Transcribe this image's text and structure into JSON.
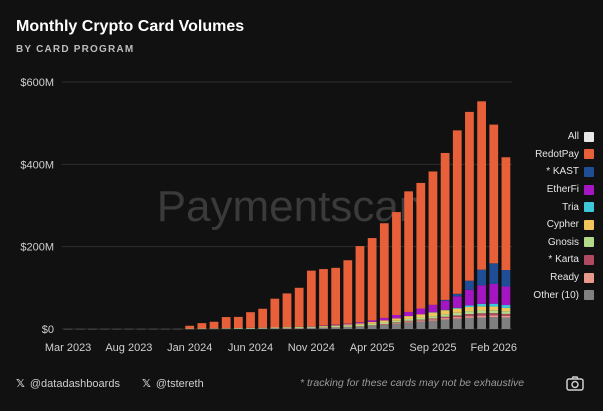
{
  "title": "Monthly Crypto Card Volumes",
  "subtitle": "BY CARD PROGRAM",
  "watermark": "Paymentscan",
  "footer": {
    "credit1": "@datadashboards",
    "credit2": "@tstereth",
    "note": "* tracking for these cards may not be exhaustive",
    "x_icon": "x-logo-icon",
    "camera_icon": "camera-icon"
  },
  "colors": {
    "background": "#111111",
    "grid": "#2e2e2e",
    "axis_text": "#cfcfcf"
  },
  "chart_data": {
    "type": "bar",
    "stacked": true,
    "categories": [
      "Mar 2023",
      "Apr 2023",
      "May 2023",
      "Jun 2023",
      "Jul 2023",
      "Aug 2023",
      "Sep 2023",
      "Oct 2023",
      "Nov 2023",
      "Dec 2023",
      "Jan 2024",
      "Feb 2024",
      "Mar 2024",
      "Apr 2024",
      "May 2024",
      "Jun 2024",
      "Jul 2024",
      "Aug 2024",
      "Sep 2024",
      "Oct 2024",
      "Nov 2024",
      "Dec 2024",
      "Jan 2025",
      "Feb 2025",
      "Mar 2025",
      "Apr 2025",
      "May 2025",
      "Jun 2025",
      "Jul 2025",
      "Aug 2025",
      "Sep 2025",
      "Oct 2025",
      "Nov 2025",
      "Dec 2025",
      "Jan 2026",
      "Feb 2026",
      "Mar 2026"
    ],
    "x_tick_labels": [
      "Mar 2023",
      "Aug 2023",
      "Jan 2024",
      "Jun 2024",
      "Nov 2024",
      "Apr 2025",
      "Sep 2025",
      "Feb 2026"
    ],
    "y_tick_labels": [
      "$0",
      "$200M",
      "$400M",
      "$600M"
    ],
    "ylim": [
      0,
      600
    ],
    "y_unit": "$M",
    "grid": true,
    "legend_position": "right",
    "series": [
      {
        "name": "Other (10)",
        "color": "#808080",
        "values": [
          0.3,
          0.3,
          0.3,
          0.3,
          0.3,
          0.3,
          0.3,
          0.3,
          0.3,
          0.3,
          0.4,
          0.5,
          0.6,
          0.8,
          1,
          1.2,
          1.4,
          1.6,
          2,
          2.4,
          2.8,
          3.3,
          4,
          5,
          6,
          8,
          10,
          13,
          16,
          18,
          20,
          23,
          25,
          27,
          28,
          29,
          28
        ]
      },
      {
        "name": "Ready",
        "color": "#e8998a",
        "values": [
          0,
          0,
          0,
          0,
          0,
          0,
          0,
          0,
          0,
          0,
          0,
          0,
          0,
          0,
          0,
          0,
          0,
          0,
          0.2,
          0.3,
          0.4,
          0.5,
          0.6,
          0.8,
          1,
          1.3,
          1.6,
          2,
          2.4,
          2.8,
          3.2,
          3.6,
          4,
          4.4,
          4.6,
          4.5,
          4.2
        ]
      },
      {
        "name": "* Karta",
        "color": "#b04a60",
        "values": [
          0,
          0,
          0,
          0,
          0,
          0,
          0,
          0,
          0,
          0,
          0,
          0,
          0,
          0,
          0,
          0,
          0,
          0,
          0,
          0,
          0,
          0,
          0,
          0,
          0,
          0,
          0.5,
          1,
          1.5,
          2,
          2.5,
          3,
          4,
          5,
          5.5,
          5,
          4.5
        ]
      },
      {
        "name": "Gnosis",
        "color": "#b5d98a",
        "values": [
          0,
          0,
          0,
          0,
          0,
          0,
          0,
          0,
          0,
          0,
          0.5,
          0.8,
          1,
          1.2,
          1.4,
          1.6,
          1.8,
          2,
          2.2,
          2.4,
          2.6,
          2.8,
          3,
          3.2,
          3.4,
          3.6,
          3.8,
          4,
          4.5,
          5,
          5.5,
          6,
          6.5,
          7,
          7,
          7,
          6.5
        ]
      },
      {
        "name": "Cypher",
        "color": "#f2c55c",
        "values": [
          0,
          0,
          0,
          0,
          0,
          0,
          0,
          0,
          0,
          0,
          0,
          0,
          0,
          0,
          0,
          0,
          0,
          0,
          0,
          0,
          0.5,
          1,
          1.5,
          2,
          3,
          4,
          5,
          6,
          7,
          8,
          9,
          10,
          10,
          10,
          10,
          9,
          8
        ]
      },
      {
        "name": "Tria",
        "color": "#3cc8d8",
        "values": [
          0,
          0,
          0,
          0,
          0,
          0,
          0,
          0,
          0,
          0,
          0,
          0,
          0,
          0,
          0,
          0,
          0,
          0,
          0,
          0,
          0,
          0,
          0,
          0,
          0,
          0,
          0,
          0,
          0,
          0,
          0.5,
          1,
          2,
          4,
          6,
          7,
          7
        ]
      },
      {
        "name": "EtherFi",
        "color": "#a515c4",
        "values": [
          0,
          0,
          0,
          0,
          0,
          0,
          0,
          0,
          0,
          0,
          0,
          0,
          0,
          0,
          0,
          0,
          0,
          0,
          0,
          0,
          0.5,
          1,
          1.5,
          2,
          3,
          4,
          6,
          8,
          10,
          14,
          18,
          22,
          28,
          38,
          45,
          48,
          45
        ]
      },
      {
        "name": "* KAST",
        "color": "#1f4e96",
        "values": [
          0,
          0,
          0,
          0,
          0,
          0,
          0,
          0,
          0,
          0,
          0,
          0,
          0,
          0,
          0,
          0,
          0,
          0,
          0,
          0,
          0,
          0,
          0,
          0,
          0,
          0,
          0,
          0,
          0,
          0,
          0,
          2,
          6,
          22,
          38,
          50,
          40
        ]
      },
      {
        "name": "RedotPay",
        "color": "#e8603a",
        "values": [
          0,
          0,
          0,
          0,
          0,
          0,
          0,
          0,
          0,
          0,
          7,
          13,
          16,
          27,
          27,
          38,
          46,
          70,
          82,
          95,
          135,
          137,
          138,
          154,
          185,
          200,
          230,
          250,
          293,
          305,
          324,
          357,
          397,
          410,
          409,
          337,
          274
        ]
      },
      {
        "name": "All",
        "color": "#e8e8e8",
        "values": [
          0,
          0,
          0,
          0,
          0,
          0,
          0,
          0,
          0,
          0,
          0,
          0,
          0,
          0,
          0,
          0,
          0,
          0,
          0,
          0,
          0,
          0,
          0,
          0,
          0,
          0,
          0,
          0,
          0,
          0,
          0,
          0,
          0,
          0,
          0,
          0,
          0
        ]
      }
    ]
  }
}
